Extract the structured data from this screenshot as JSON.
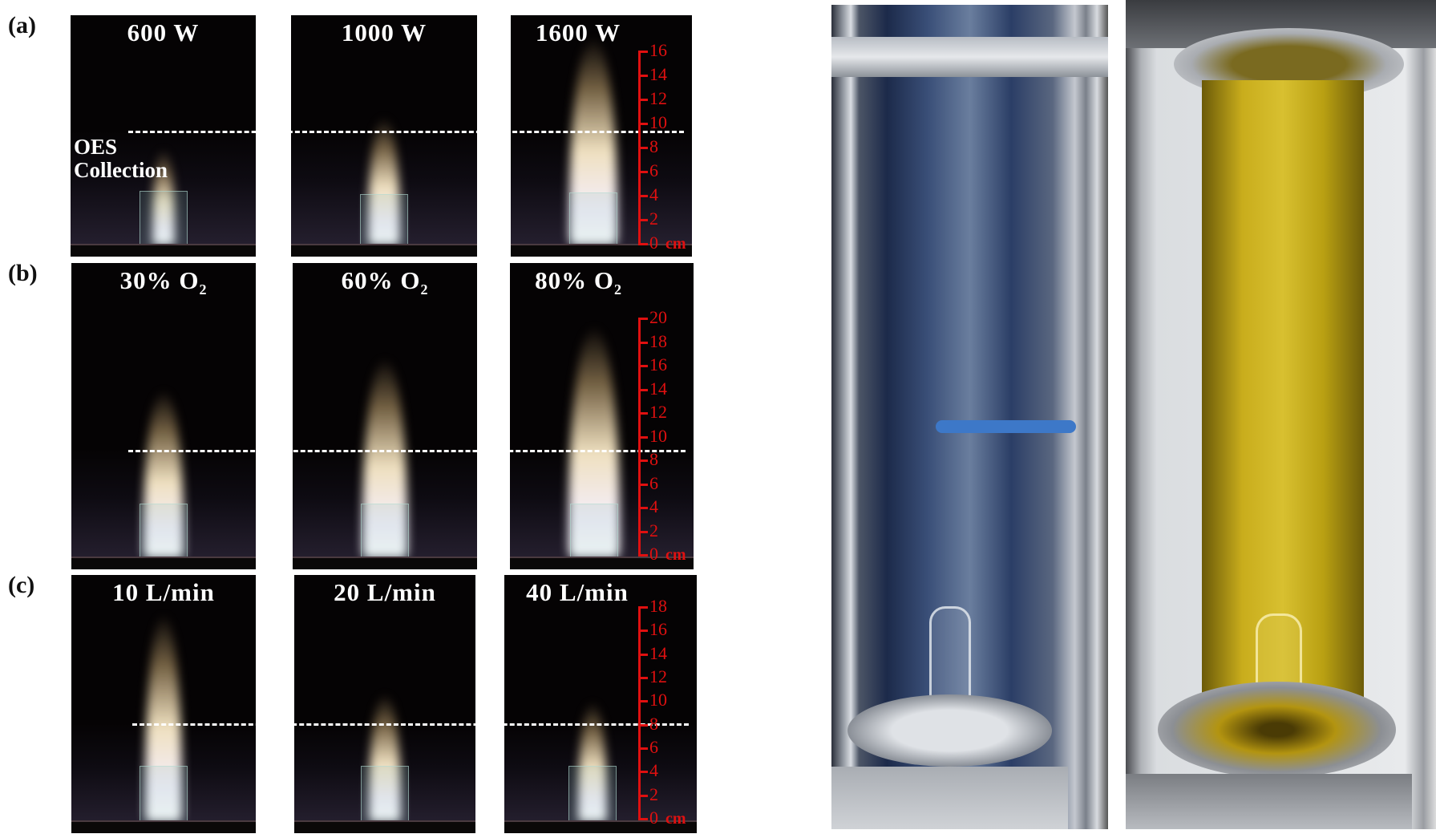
{
  "rows": [
    {
      "label": "(a)",
      "panels": [
        "600 W",
        "1000 W",
        "1600 W"
      ],
      "ruler": {
        "max": 16,
        "step": 2,
        "unit": "cm"
      },
      "annotation": [
        "OES",
        "Collection"
      ]
    },
    {
      "label": "(b)",
      "panels": [
        "30% O",
        "60% O",
        "80% O"
      ],
      "subscript": "2",
      "ruler": {
        "max": 20,
        "step": 2,
        "unit": "cm"
      }
    },
    {
      "label": "(c)",
      "panels": [
        "10 L/min",
        "20 L/min",
        "40 L/min"
      ],
      "ruler": {
        "max": 18,
        "step": 2,
        "unit": "cm"
      }
    }
  ],
  "colors": {
    "ruler": "#e01010",
    "dashed_line": "#ffffff",
    "panel_background": "#050304",
    "oil_yellow": "#b89a10"
  },
  "photos": [
    "empty-transparent-reactor-tube",
    "reactor-tube-filled-yellow-liquid"
  ]
}
